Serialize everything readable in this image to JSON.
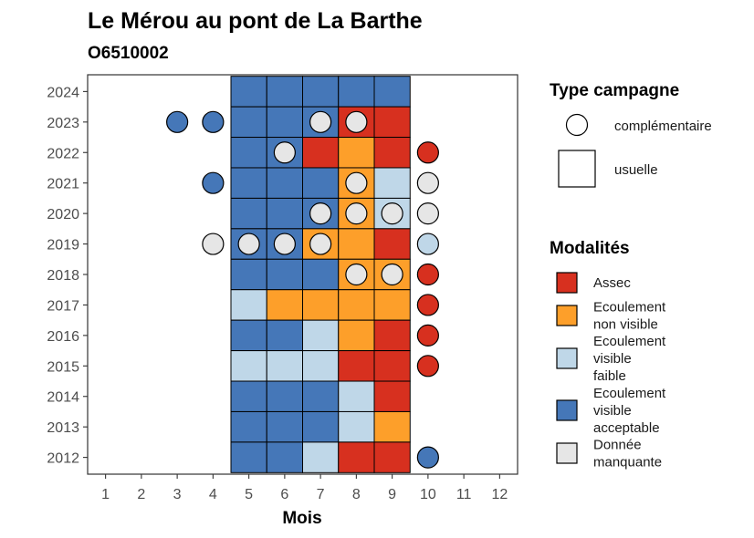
{
  "chart_data": {
    "type": "heatmap",
    "title": "Le Mérou au pont de La Barthe",
    "subtitle": "O6510002",
    "xlabel": "Mois",
    "x_ticks": [
      1,
      2,
      3,
      4,
      5,
      6,
      7,
      8,
      9,
      10,
      11,
      12
    ],
    "y_ticks": [
      2012,
      2013,
      2014,
      2015,
      2016,
      2017,
      2018,
      2019,
      2020,
      2021,
      2022,
      2023,
      2024
    ],
    "xlim": [
      0.5,
      12.5
    ],
    "ylim": [
      2011.45,
      2024.55
    ],
    "colors": {
      "Assec": "#d7301f",
      "Ecoulement non visible": "#fd9f2a",
      "Ecoulement visible faible": "#bfd7e8",
      "Ecoulement visible acceptable": "#4577b8",
      "Donnée manquante": "#e6e6e6"
    },
    "usuelle": [
      {
        "year": 2024,
        "values": [
          "Ecoulement visible acceptable",
          "Ecoulement visible acceptable",
          "Ecoulement visible acceptable",
          "Ecoulement visible acceptable",
          "Ecoulement visible acceptable"
        ]
      },
      {
        "year": 2023,
        "values": [
          "Ecoulement visible acceptable",
          "Ecoulement visible acceptable",
          "Ecoulement visible acceptable",
          "Assec",
          "Assec"
        ]
      },
      {
        "year": 2022,
        "values": [
          "Ecoulement visible acceptable",
          "Ecoulement visible acceptable",
          "Assec",
          "Ecoulement non visible",
          "Assec"
        ]
      },
      {
        "year": 2021,
        "values": [
          "Ecoulement visible acceptable",
          "Ecoulement visible acceptable",
          "Ecoulement visible acceptable",
          "Ecoulement non visible",
          "Ecoulement visible faible"
        ]
      },
      {
        "year": 2020,
        "values": [
          "Ecoulement visible acceptable",
          "Ecoulement visible acceptable",
          "Ecoulement visible acceptable",
          "Ecoulement non visible",
          "Ecoulement visible faible"
        ]
      },
      {
        "year": 2019,
        "values": [
          "Ecoulement visible acceptable",
          "Ecoulement visible acceptable",
          "Ecoulement non visible",
          "Ecoulement non visible",
          "Assec"
        ]
      },
      {
        "year": 2018,
        "values": [
          "Ecoulement visible acceptable",
          "Ecoulement visible acceptable",
          "Ecoulement visible acceptable",
          "Ecoulement non visible",
          "Ecoulement non visible"
        ]
      },
      {
        "year": 2017,
        "values": [
          "Ecoulement visible faible",
          "Ecoulement non visible",
          "Ecoulement non visible",
          "Ecoulement non visible",
          "Ecoulement non visible"
        ]
      },
      {
        "year": 2016,
        "values": [
          "Ecoulement visible acceptable",
          "Ecoulement visible acceptable",
          "Ecoulement visible faible",
          "Ecoulement non visible",
          "Assec"
        ]
      },
      {
        "year": 2015,
        "values": [
          "Ecoulement visible faible",
          "Ecoulement visible faible",
          "Ecoulement visible faible",
          "Assec",
          "Assec"
        ]
      },
      {
        "year": 2014,
        "values": [
          "Ecoulement visible acceptable",
          "Ecoulement visible acceptable",
          "Ecoulement visible acceptable",
          "Ecoulement visible faible",
          "Assec"
        ]
      },
      {
        "year": 2013,
        "values": [
          "Ecoulement visible acceptable",
          "Ecoulement visible acceptable",
          "Ecoulement visible acceptable",
          "Ecoulement visible faible",
          "Ecoulement non visible"
        ]
      },
      {
        "year": 2012,
        "values": [
          "Ecoulement visible acceptable",
          "Ecoulement visible acceptable",
          "Ecoulement visible faible",
          "Assec",
          "Assec"
        ]
      }
    ],
    "usuelle_months": [
      5,
      6,
      7,
      8,
      9
    ],
    "complementaire": [
      {
        "year": 2023,
        "month": 3,
        "value": "Ecoulement visible acceptable"
      },
      {
        "year": 2023,
        "month": 4,
        "value": "Ecoulement visible acceptable"
      },
      {
        "year": 2023,
        "month": 7,
        "value": "Donnée manquante"
      },
      {
        "year": 2023,
        "month": 8,
        "value": "Donnée manquante"
      },
      {
        "year": 2022,
        "month": 6,
        "value": "Donnée manquante"
      },
      {
        "year": 2022,
        "month": 10,
        "value": "Assec"
      },
      {
        "year": 2021,
        "month": 4,
        "value": "Ecoulement visible acceptable"
      },
      {
        "year": 2021,
        "month": 8,
        "value": "Donnée manquante"
      },
      {
        "year": 2021,
        "month": 10,
        "value": "Donnée manquante"
      },
      {
        "year": 2020,
        "month": 7,
        "value": "Donnée manquante"
      },
      {
        "year": 2020,
        "month": 8,
        "value": "Donnée manquante"
      },
      {
        "year": 2020,
        "month": 9,
        "value": "Donnée manquante"
      },
      {
        "year": 2020,
        "month": 10,
        "value": "Donnée manquante"
      },
      {
        "year": 2019,
        "month": 4,
        "value": "Donnée manquante"
      },
      {
        "year": 2019,
        "month": 5,
        "value": "Donnée manquante"
      },
      {
        "year": 2019,
        "month": 6,
        "value": "Donnée manquante"
      },
      {
        "year": 2019,
        "month": 7,
        "value": "Donnée manquante"
      },
      {
        "year": 2019,
        "month": 10,
        "value": "Ecoulement visible faible"
      },
      {
        "year": 2018,
        "month": 8,
        "value": "Donnée manquante"
      },
      {
        "year": 2018,
        "month": 9,
        "value": "Donnée manquante"
      },
      {
        "year": 2018,
        "month": 10,
        "value": "Assec"
      },
      {
        "year": 2017,
        "month": 10,
        "value": "Assec"
      },
      {
        "year": 2016,
        "month": 10,
        "value": "Assec"
      },
      {
        "year": 2015,
        "month": 10,
        "value": "Assec"
      },
      {
        "year": 2012,
        "month": 10,
        "value": "Ecoulement visible acceptable"
      }
    ],
    "legend": {
      "type_title": "Type campagne",
      "type_items": [
        "complémentaire",
        "usuelle"
      ],
      "mod_title": "Modalités",
      "mod_items": [
        {
          "key": "Assec",
          "lines": [
            "Assec"
          ]
        },
        {
          "key": "Ecoulement non visible",
          "lines": [
            "Ecoulement",
            "non visible"
          ]
        },
        {
          "key": "Ecoulement visible faible",
          "lines": [
            "Ecoulement",
            "visible",
            "faible"
          ]
        },
        {
          "key": "Ecoulement visible acceptable",
          "lines": [
            "Ecoulement",
            "visible",
            "acceptable"
          ]
        },
        {
          "key": "Donnée manquante",
          "lines": [
            "Donnée",
            "manquante"
          ]
        }
      ],
      "placement": "right"
    },
    "grid": false
  }
}
